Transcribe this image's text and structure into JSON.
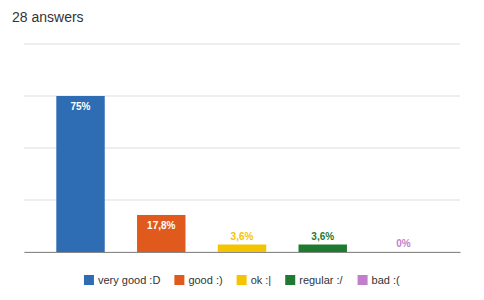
{
  "chart_data": {
    "type": "bar",
    "title": "28 answers",
    "categories": [
      "very good :D",
      "good :)",
      "ok :|",
      "regular :/",
      "bad :("
    ],
    "values": [
      75,
      17.8,
      3.6,
      3.6,
      0
    ],
    "value_labels": [
      "75%",
      "17,8%",
      "3,6%",
      "3,6%",
      "0%"
    ],
    "colors": [
      "#2e6db4",
      "#e05a1e",
      "#f5c400",
      "#1e7a30",
      "#c17fcb"
    ],
    "ylim": [
      0,
      100
    ],
    "yticks": [
      0,
      25,
      50,
      75,
      100
    ],
    "grid": true,
    "data_labels": true,
    "tick_labels": false,
    "legend": "bottom"
  }
}
